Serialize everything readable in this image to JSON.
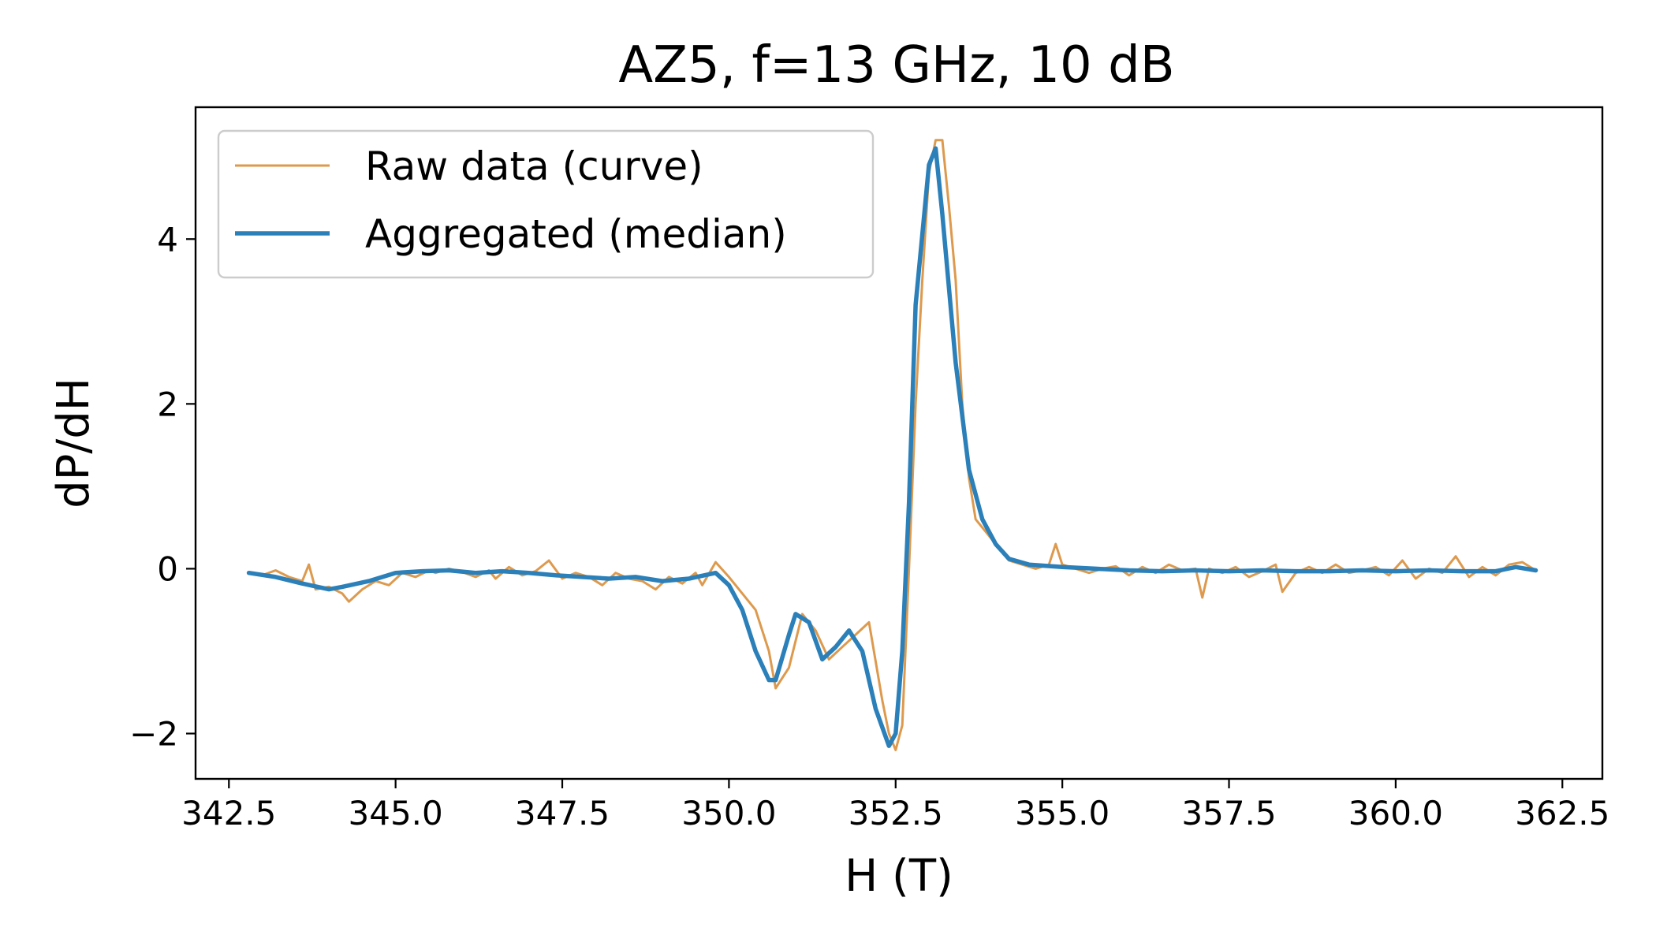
{
  "chart_data": {
    "type": "line",
    "title": "AZ5, f=13 GHz, 10 dB",
    "xlabel": "H (T)",
    "ylabel": "dP/dH",
    "xlim": [
      342.0,
      363.1
    ],
    "ylim": [
      -2.55,
      5.6
    ],
    "x_ticks": [
      342.5,
      345.0,
      347.5,
      350.0,
      352.5,
      355.0,
      357.5,
      360.0,
      362.5
    ],
    "x_tick_labels": [
      "342.5",
      "345.0",
      "347.5",
      "350.0",
      "352.5",
      "355.0",
      "357.5",
      "360.0",
      "362.5"
    ],
    "y_ticks": [
      -2,
      0,
      2,
      4
    ],
    "y_tick_labels": [
      "−2",
      "0",
      "2",
      "4"
    ],
    "grid": false,
    "legend_position": "top-left",
    "series": [
      {
        "name": "Raw data (curve)",
        "color": "#dd9a4e",
        "x": [
          342.8,
          343.0,
          343.2,
          343.4,
          343.6,
          343.7,
          343.8,
          344.0,
          344.2,
          344.3,
          344.5,
          344.7,
          344.9,
          345.1,
          345.3,
          345.5,
          345.6,
          345.8,
          346.0,
          346.2,
          346.4,
          346.5,
          346.7,
          346.9,
          347.1,
          347.3,
          347.5,
          347.7,
          347.9,
          348.1,
          348.3,
          348.5,
          348.7,
          348.9,
          349.1,
          349.3,
          349.5,
          349.6,
          349.8,
          350.0,
          350.2,
          350.4,
          350.6,
          350.7,
          350.9,
          351.1,
          351.3,
          351.5,
          351.7,
          351.9,
          352.1,
          352.3,
          352.4,
          352.5,
          352.6,
          352.7,
          352.8,
          352.9,
          353.0,
          353.1,
          353.2,
          353.3,
          353.4,
          353.5,
          353.6,
          353.7,
          353.8,
          354.0,
          354.2,
          354.4,
          354.6,
          354.8,
          354.9,
          355.0,
          355.2,
          355.4,
          355.6,
          355.8,
          356.0,
          356.2,
          356.4,
          356.6,
          356.8,
          357.0,
          357.1,
          357.2,
          357.4,
          357.6,
          357.8,
          358.0,
          358.2,
          358.3,
          358.5,
          358.7,
          358.9,
          359.1,
          359.3,
          359.5,
          359.7,
          359.9,
          360.1,
          360.3,
          360.5,
          360.7,
          360.9,
          361.1,
          361.3,
          361.5,
          361.7,
          361.9,
          362.1
        ],
        "y": [
          -0.05,
          -0.08,
          -0.02,
          -0.1,
          -0.15,
          0.05,
          -0.25,
          -0.22,
          -0.3,
          -0.4,
          -0.25,
          -0.15,
          -0.2,
          -0.05,
          -0.1,
          -0.02,
          -0.05,
          0.0,
          -0.04,
          -0.1,
          -0.02,
          -0.12,
          0.02,
          -0.08,
          -0.03,
          0.1,
          -0.12,
          -0.05,
          -0.1,
          -0.2,
          -0.05,
          -0.12,
          -0.15,
          -0.25,
          -0.1,
          -0.18,
          -0.05,
          -0.2,
          0.08,
          -0.1,
          -0.3,
          -0.5,
          -1.0,
          -1.45,
          -1.2,
          -0.55,
          -0.75,
          -1.1,
          -0.95,
          -0.8,
          -0.65,
          -1.6,
          -2.0,
          -2.2,
          -1.9,
          0.0,
          2.0,
          3.5,
          4.8,
          5.2,
          5.2,
          4.4,
          3.5,
          2.0,
          1.1,
          0.6,
          0.5,
          0.3,
          0.1,
          0.05,
          0.0,
          0.05,
          0.3,
          0.05,
          0.0,
          -0.05,
          0.0,
          0.03,
          -0.08,
          0.02,
          -0.05,
          0.05,
          -0.02,
          0.0,
          -0.35,
          0.0,
          -0.05,
          0.02,
          -0.1,
          -0.03,
          0.05,
          -0.28,
          -0.05,
          0.02,
          -0.05,
          0.05,
          -0.05,
          -0.02,
          0.02,
          -0.08,
          0.1,
          -0.12,
          0.0,
          -0.05,
          0.15,
          -0.1,
          0.02,
          -0.08,
          0.05,
          0.08,
          -0.02
        ]
      },
      {
        "name": "Aggregated (median)",
        "color": "#2b80b9",
        "x": [
          342.8,
          343.2,
          343.6,
          344.0,
          344.2,
          344.6,
          345.0,
          345.4,
          345.8,
          346.2,
          346.6,
          347.0,
          347.4,
          347.8,
          348.2,
          348.6,
          349.0,
          349.4,
          349.8,
          350.0,
          350.2,
          350.4,
          350.6,
          350.7,
          350.9,
          351.0,
          351.2,
          351.4,
          351.6,
          351.8,
          352.0,
          352.2,
          352.4,
          352.5,
          352.6,
          352.7,
          352.8,
          353.0,
          353.1,
          353.2,
          353.4,
          353.6,
          353.8,
          354.0,
          354.2,
          354.5,
          355.0,
          355.5,
          356.0,
          356.5,
          357.0,
          357.5,
          358.0,
          358.5,
          359.0,
          359.5,
          360.0,
          360.5,
          361.0,
          361.5,
          361.8,
          362.1
        ],
        "y": [
          -0.05,
          -0.1,
          -0.18,
          -0.25,
          -0.22,
          -0.15,
          -0.05,
          -0.03,
          -0.02,
          -0.05,
          -0.03,
          -0.05,
          -0.08,
          -0.1,
          -0.12,
          -0.1,
          -0.15,
          -0.12,
          -0.05,
          -0.2,
          -0.5,
          -1.0,
          -1.35,
          -1.35,
          -0.8,
          -0.55,
          -0.65,
          -1.1,
          -0.95,
          -0.75,
          -1.0,
          -1.7,
          -2.15,
          -2.0,
          -1.0,
          0.8,
          3.2,
          4.9,
          5.1,
          4.3,
          2.5,
          1.2,
          0.6,
          0.3,
          0.12,
          0.05,
          0.02,
          0.0,
          -0.02,
          -0.03,
          -0.02,
          -0.03,
          -0.02,
          -0.03,
          -0.03,
          -0.02,
          -0.03,
          -0.02,
          -0.03,
          -0.03,
          0.02,
          -0.02
        ]
      }
    ]
  }
}
